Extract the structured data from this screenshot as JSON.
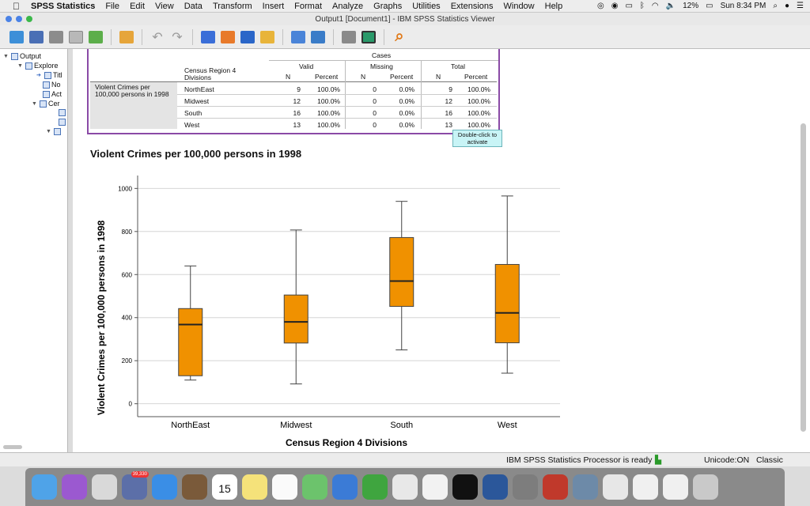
{
  "menubar": {
    "app_name": "SPSS Statistics",
    "items": [
      "File",
      "Edit",
      "View",
      "Data",
      "Transform",
      "Insert",
      "Format",
      "Analyze",
      "Graphs",
      "Utilities",
      "Extensions",
      "Window",
      "Help"
    ],
    "battery": "12%",
    "clock": "Sun 8:34 PM"
  },
  "window": {
    "title": "Output1 [Document1] - IBM SPSS Statistics Viewer"
  },
  "toolbar": {
    "icons": [
      "open-icon",
      "save-icon",
      "print-icon",
      "print-preview-icon",
      "export-icon",
      "recall-dialog-icon",
      "undo-icon",
      "redo-icon",
      "goto-data-icon",
      "goto-case-icon",
      "goto-variable-icon",
      "variables-icon",
      "show-output-icon",
      "designate-window-icon",
      "hidden-icon",
      "create-chart-icon",
      "search-icon"
    ]
  },
  "navigator": {
    "items": [
      {
        "label": "Output",
        "indent": 0,
        "arrow": "▼"
      },
      {
        "label": "Explore",
        "indent": 1,
        "arrow": "▼"
      },
      {
        "label": "Titl",
        "indent": 2,
        "arrow": "➔"
      },
      {
        "label": "No",
        "indent": 2,
        "arrow": ""
      },
      {
        "label": "Act",
        "indent": 2,
        "arrow": ""
      },
      {
        "label": "Cer",
        "indent": 1,
        "arrow": "▼"
      },
      {
        "label": "",
        "indent": 2,
        "arrow": ""
      },
      {
        "label": "",
        "indent": 2,
        "arrow": ""
      },
      {
        "label": "",
        "indent": 1,
        "arrow": "▼"
      }
    ]
  },
  "case_table": {
    "header_cases": "Cases",
    "header_valid": "Valid",
    "header_missing": "Missing",
    "header_total": "Total",
    "col_region": "Census Region 4 Divisions",
    "col_n": "N",
    "col_percent": "Percent",
    "row_label": "Violent Crimes per 100,000 persons in 1998",
    "rows": [
      {
        "region": "NorthEast",
        "valid_n": "9",
        "valid_pct": "100.0%",
        "missing_n": "0",
        "missing_pct": "0.0%",
        "total_n": "9",
        "total_pct": "100.0%"
      },
      {
        "region": "Midwest",
        "valid_n": "12",
        "valid_pct": "100.0%",
        "missing_n": "0",
        "missing_pct": "0.0%",
        "total_n": "12",
        "total_pct": "100.0%"
      },
      {
        "region": "South",
        "valid_n": "16",
        "valid_pct": "100.0%",
        "missing_n": "0",
        "missing_pct": "0.0%",
        "total_n": "16",
        "total_pct": "100.0%"
      },
      {
        "region": "West",
        "valid_n": "13",
        "valid_pct": "100.0%",
        "missing_n": "0",
        "missing_pct": "0.0%",
        "total_n": "13",
        "total_pct": "100.0%"
      }
    ],
    "tooltip": "Double-click to activate"
  },
  "chart_data": {
    "type": "boxplot",
    "title": "Violent Crimes per 100,000 persons in 1998",
    "xlabel": "Census Region 4 Divisions",
    "ylabel": "Violent Crimes per 100,000 persons in 1998",
    "ylim": [
      -60,
      1060
    ],
    "yticks": [
      0,
      200,
      400,
      600,
      800,
      1000
    ],
    "grid": true,
    "box_color": "#f09100",
    "categories": [
      "NorthEast",
      "Midwest",
      "South",
      "West"
    ],
    "boxes": [
      {
        "min": 110,
        "q1": 130,
        "median": 368,
        "q3": 442,
        "max": 640
      },
      {
        "min": 92,
        "q1": 282,
        "median": 380,
        "q3": 505,
        "max": 807
      },
      {
        "min": 250,
        "q1": 452,
        "median": 570,
        "q3": 772,
        "max": 940
      },
      {
        "min": 142,
        "q1": 283,
        "median": 422,
        "q3": 647,
        "max": 965
      }
    ]
  },
  "status": {
    "processor": "IBM SPSS Statistics Processor is ready",
    "unicode": "Unicode:ON",
    "mode": "Classic"
  },
  "dock": {
    "icons": [
      {
        "name": "finder-icon",
        "color": "#4fa3e8"
      },
      {
        "name": "siri-icon",
        "color": "#9b59d0"
      },
      {
        "name": "launchpad-icon",
        "color": "#d9d9d9"
      },
      {
        "name": "photos-stamp-icon",
        "color": "#5c6fa8",
        "badge": "39,330"
      },
      {
        "name": "safari-icon",
        "color": "#3a8ee6"
      },
      {
        "name": "contacts-icon",
        "color": "#7a5a3a"
      },
      {
        "name": "calendar-icon",
        "color": "#ffffff",
        "text": "15"
      },
      {
        "name": "notes-icon",
        "color": "#f5e27a"
      },
      {
        "name": "reminders-icon",
        "color": "#fafafa"
      },
      {
        "name": "maps-icon",
        "color": "#6cc36c"
      },
      {
        "name": "pen-icon",
        "color": "#3b7bd6"
      },
      {
        "name": "numbers-icon",
        "color": "#3fa53f"
      },
      {
        "name": "keynote-icon",
        "color": "#e8e8e8"
      },
      {
        "name": "music-icon",
        "color": "#f2f2f2"
      },
      {
        "name": "tv-icon",
        "color": "#111111"
      },
      {
        "name": "word-icon",
        "color": "#2b579a"
      },
      {
        "name": "system-preferences-icon",
        "color": "#7d7d7d"
      },
      {
        "name": "spss-icon",
        "color": "#c0392b"
      },
      {
        "name": "preview-icon",
        "color": "#6d8aa8"
      },
      {
        "name": "chrome-icon",
        "color": "#e7e7e7"
      },
      {
        "name": "window-thumb-1-icon",
        "color": "#f0f0f0"
      },
      {
        "name": "window-thumb-2-icon",
        "color": "#f0f0f0"
      },
      {
        "name": "trash-icon",
        "color": "#c9c9c9"
      }
    ]
  }
}
